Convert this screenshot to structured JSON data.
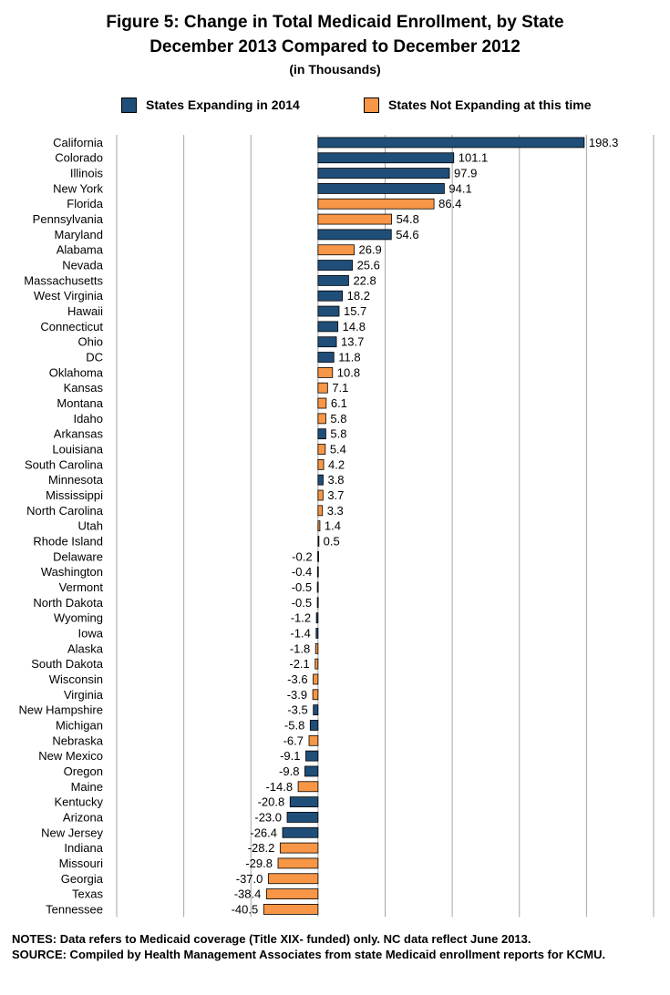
{
  "chart_data": {
    "type": "bar",
    "orientation": "horizontal",
    "title": "Figure 5: Change in Total Medicaid Enrollment, by State",
    "subtitle": "December 2013 Compared to December 2012",
    "unit_note": "(in Thousands)",
    "legend": [
      {
        "name": "States Expanding in 2014",
        "color": "#1f4e79"
      },
      {
        "name": "States Not Expanding at this time",
        "color": "#f79646"
      }
    ],
    "xlim": [
      -150,
      250
    ],
    "grid": true,
    "legend_position": "top",
    "categories": [
      "California",
      "Colorado",
      "Illinois",
      "New York",
      "Florida",
      "Pennsylvania",
      "Maryland",
      "Alabama",
      "Nevada",
      "Massachusetts",
      "West Virginia",
      "Hawaii",
      "Connecticut",
      "Ohio",
      "DC",
      "Oklahoma",
      "Kansas",
      "Montana",
      "Idaho",
      "Arkansas",
      "Louisiana",
      "South Carolina",
      "Minnesota",
      "Mississippi",
      "North Carolina",
      "Utah",
      "Rhode Island",
      "Delaware",
      "Washington",
      "Vermont",
      "North Dakota",
      "Wyoming",
      "Iowa",
      "Alaska",
      "South Dakota",
      "Wisconsin",
      "Virginia",
      "New Hampshire",
      "Michigan",
      "Nebraska",
      "New Mexico",
      "Oregon",
      "Maine",
      "Kentucky",
      "Arizona",
      "New Jersey",
      "Indiana",
      "Missouri",
      "Georgia",
      "Texas",
      "Tennessee"
    ],
    "values": [
      198.3,
      101.1,
      97.9,
      94.1,
      86.4,
      54.8,
      54.6,
      26.9,
      25.6,
      22.8,
      18.2,
      15.7,
      14.8,
      13.7,
      11.8,
      10.8,
      7.1,
      6.1,
      5.8,
      5.8,
      5.4,
      4.2,
      3.8,
      3.7,
      3.3,
      1.4,
      0.5,
      -0.2,
      -0.4,
      -0.5,
      -0.5,
      -1.2,
      -1.4,
      -1.8,
      -2.1,
      -3.6,
      -3.9,
      -3.5,
      -5.8,
      -6.7,
      -9.1,
      -9.8,
      -14.8,
      -20.8,
      -23.0,
      -26.4,
      -28.2,
      -29.8,
      -37.0,
      -38.4,
      -40.5
    ],
    "value_labels": [
      "198.3",
      "101.1",
      "97.9",
      "94.1",
      "86.4",
      "54.8",
      "54.6",
      "26.9",
      "25.6",
      "22.8",
      "18.2",
      "15.7",
      "14.8",
      "13.7",
      "11.8",
      "10.8",
      "7.1",
      "6.1",
      "5.8",
      "5.8",
      "5.4",
      "4.2",
      "3.8",
      "3.7",
      "3.3",
      "1.4",
      "0.5",
      "-0.2",
      "-0.4",
      "-0.5",
      "-0.5",
      "-1.2",
      "-1.4",
      "-1.8",
      "-2.1",
      "-3.6",
      "-3.9",
      "-3.5",
      "-5.8",
      "-6.7",
      "-9.1",
      "-9.8",
      "-14.8",
      "-20.8",
      "-23.0",
      "-26.4",
      "-28.2",
      "-29.8",
      "-37.0",
      "-38.4",
      "-40.5"
    ],
    "groups": [
      "exp",
      "exp",
      "exp",
      "exp",
      "not",
      "not",
      "exp",
      "not",
      "exp",
      "exp",
      "exp",
      "exp",
      "exp",
      "exp",
      "exp",
      "not",
      "not",
      "not",
      "not",
      "exp",
      "not",
      "not",
      "exp",
      "not",
      "not",
      "not",
      "exp",
      "exp",
      "exp",
      "exp",
      "exp",
      "exp",
      "exp",
      "not",
      "not",
      "not",
      "not",
      "exp",
      "exp",
      "not",
      "exp",
      "exp",
      "not",
      "exp",
      "exp",
      "exp",
      "not",
      "not",
      "not",
      "not",
      "not"
    ]
  },
  "notes": {
    "line1": "NOTES: Data refers to Medicaid coverage (Title XIX- funded) only. NC data reflect June 2013.",
    "line2": "SOURCE: Compiled by Health Management Associates from state Medicaid enrollment reports for KCMU."
  }
}
